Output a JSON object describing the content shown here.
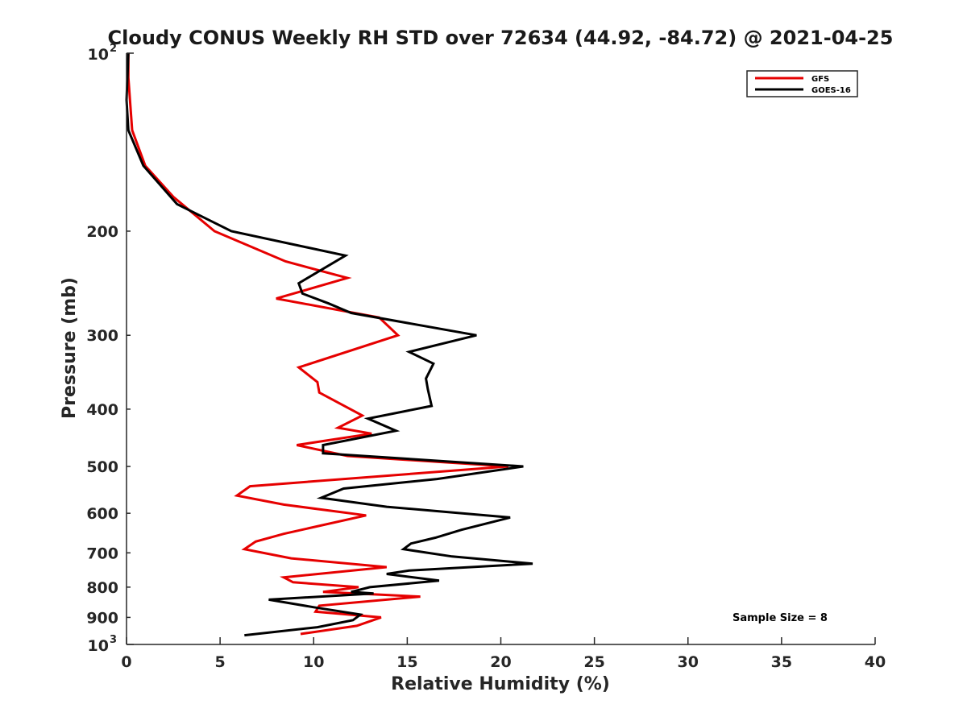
{
  "chart_data": {
    "type": "line",
    "title": "Cloudy CONUS Weekly RH STD over 72634 (44.92, -84.72) @ 2021-04-25",
    "xlabel": "Relative Humidity (%)",
    "ylabel": "Pressure (mb)",
    "xlim": [
      0,
      40
    ],
    "ylim": [
      100,
      1000
    ],
    "y_scale": "log",
    "y_reversed": true,
    "grid": false,
    "legend_position": "top-right",
    "x_ticks": [
      0,
      5,
      10,
      15,
      20,
      25,
      30,
      35,
      40
    ],
    "x_tick_labels": [
      "0",
      "5",
      "10",
      "15",
      "20",
      "25",
      "30",
      "35",
      "40"
    ],
    "y_ticks": [
      100,
      200,
      300,
      400,
      500,
      600,
      700,
      800,
      900,
      1000
    ],
    "y_tick_labels": [
      {
        "base": "10",
        "exp": "2"
      },
      {
        "base": "200",
        "exp": ""
      },
      {
        "base": "300",
        "exp": ""
      },
      {
        "base": "400",
        "exp": ""
      },
      {
        "base": "500",
        "exp": ""
      },
      {
        "base": "600",
        "exp": ""
      },
      {
        "base": "700",
        "exp": ""
      },
      {
        "base": "800",
        "exp": ""
      },
      {
        "base": "900",
        "exp": ""
      },
      {
        "base": "10",
        "exp": "3"
      }
    ],
    "annotation": "Sample Size = 8",
    "series": [
      {
        "name": "GFS",
        "color": "#e60000",
        "points": [
          [
            0.1,
            100
          ],
          [
            0.1,
            110
          ],
          [
            0.3,
            135
          ],
          [
            1.0,
            155
          ],
          [
            2.5,
            175
          ],
          [
            4.7,
            200
          ],
          [
            8.5,
            225
          ],
          [
            11.8,
            240
          ],
          [
            8.0,
            260
          ],
          [
            13.5,
            280
          ],
          [
            14.5,
            300
          ],
          [
            9.2,
            340
          ],
          [
            10.2,
            360
          ],
          [
            10.3,
            375
          ],
          [
            12.6,
            410
          ],
          [
            11.3,
            430
          ],
          [
            13.1,
            440
          ],
          [
            9.1,
            460
          ],
          [
            11.8,
            480
          ],
          [
            20.4,
            500
          ],
          [
            6.6,
            540
          ],
          [
            5.9,
            560
          ],
          [
            8.4,
            580
          ],
          [
            12.8,
            605
          ],
          [
            8.4,
            650
          ],
          [
            6.9,
            670
          ],
          [
            6.3,
            690
          ],
          [
            8.8,
            715
          ],
          [
            13.9,
            740
          ],
          [
            8.4,
            770
          ],
          [
            8.9,
            785
          ],
          [
            12.4,
            800
          ],
          [
            10.5,
            815
          ],
          [
            15.7,
            830
          ],
          [
            10.3,
            860
          ],
          [
            10.1,
            880
          ],
          [
            13.6,
            900
          ],
          [
            12.3,
            930
          ],
          [
            9.3,
            960
          ]
        ]
      },
      {
        "name": "GOES-16",
        "color": "#000000",
        "points": [
          [
            0.1,
            100
          ],
          [
            0.0,
            120
          ],
          [
            0.1,
            135
          ],
          [
            0.9,
            155
          ],
          [
            2.7,
            180
          ],
          [
            5.6,
            200
          ],
          [
            11.7,
            220
          ],
          [
            9.2,
            245
          ],
          [
            9.4,
            255
          ],
          [
            10.8,
            265
          ],
          [
            12.0,
            275
          ],
          [
            18.7,
            300
          ],
          [
            15.1,
            320
          ],
          [
            16.4,
            335
          ],
          [
            16.0,
            355
          ],
          [
            16.1,
            370
          ],
          [
            16.3,
            395
          ],
          [
            12.9,
            415
          ],
          [
            14.4,
            435
          ],
          [
            10.5,
            460
          ],
          [
            10.5,
            475
          ],
          [
            21.2,
            500
          ],
          [
            16.6,
            525
          ],
          [
            11.6,
            545
          ],
          [
            10.4,
            565
          ],
          [
            13.9,
            585
          ],
          [
            20.5,
            610
          ],
          [
            17.9,
            640
          ],
          [
            16.5,
            660
          ],
          [
            15.2,
            675
          ],
          [
            14.8,
            690
          ],
          [
            17.4,
            710
          ],
          [
            21.7,
            730
          ],
          [
            15.1,
            750
          ],
          [
            13.9,
            760
          ],
          [
            16.7,
            780
          ],
          [
            13.0,
            800
          ],
          [
            12.0,
            815
          ],
          [
            13.2,
            820
          ],
          [
            7.6,
            840
          ],
          [
            10.0,
            865
          ],
          [
            12.5,
            890
          ],
          [
            12.1,
            910
          ],
          [
            10.2,
            935
          ],
          [
            6.3,
            965
          ]
        ]
      }
    ]
  }
}
